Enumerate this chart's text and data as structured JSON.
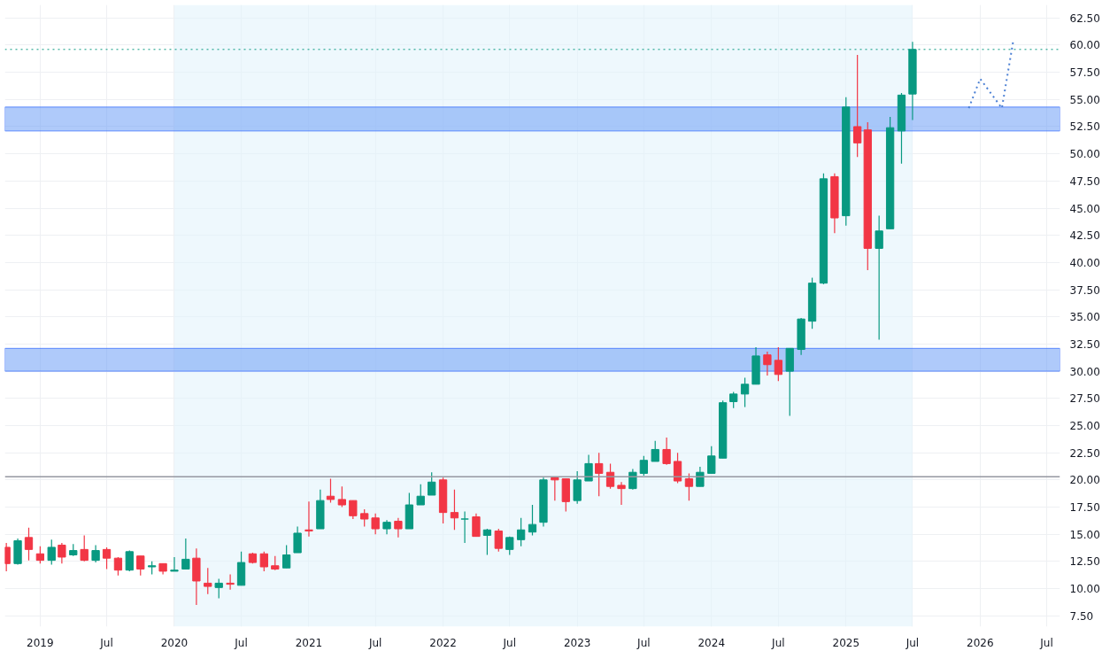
{
  "chart_data": {
    "type": "candlestick",
    "x": [
      "2018-10",
      "2018-11",
      "2018-12",
      "2019-01",
      "2019-02",
      "2019-03",
      "2019-04",
      "2019-05",
      "2019-06",
      "2019-07",
      "2019-08",
      "2019-09",
      "2019-10",
      "2019-11",
      "2019-12",
      "2020-01",
      "2020-02",
      "2020-03",
      "2020-04",
      "2020-05",
      "2020-06",
      "2020-07",
      "2020-08",
      "2020-09",
      "2020-10",
      "2020-11",
      "2020-12",
      "2021-01",
      "2021-02",
      "2021-03",
      "2021-04",
      "2021-05",
      "2021-06",
      "2021-07",
      "2021-08",
      "2021-09",
      "2021-10",
      "2021-11",
      "2021-12",
      "2022-01",
      "2022-02",
      "2022-03",
      "2022-04",
      "2022-05",
      "2022-06",
      "2022-07",
      "2022-08",
      "2022-09",
      "2022-10",
      "2022-11",
      "2022-12",
      "2023-01",
      "2023-02",
      "2023-03",
      "2023-04",
      "2023-05",
      "2023-06",
      "2023-07",
      "2023-08",
      "2023-09",
      "2023-10",
      "2023-11",
      "2023-12",
      "2024-01",
      "2024-02",
      "2024-03",
      "2024-04",
      "2024-05",
      "2024-06",
      "2024-07",
      "2024-08",
      "2024-09",
      "2024-10",
      "2024-11",
      "2024-12",
      "2025-01",
      "2025-02",
      "2025-03",
      "2025-04",
      "2025-05",
      "2025-06",
      "2025-07"
    ],
    "ohlc": [
      [
        13.8,
        14.2,
        11.6,
        12.3
      ],
      [
        12.3,
        14.6,
        12.2,
        14.4
      ],
      [
        14.7,
        15.6,
        12.6,
        13.6
      ],
      [
        13.2,
        13.9,
        12.3,
        12.6
      ],
      [
        12.6,
        14.5,
        12.2,
        13.8
      ],
      [
        14.0,
        14.2,
        12.3,
        12.9
      ],
      [
        13.1,
        14.1,
        13.0,
        13.5
      ],
      [
        13.6,
        14.9,
        12.5,
        12.6
      ],
      [
        12.6,
        14.0,
        12.4,
        13.5
      ],
      [
        13.6,
        13.8,
        11.8,
        12.8
      ],
      [
        12.8,
        12.9,
        11.2,
        11.7
      ],
      [
        11.7,
        13.5,
        11.6,
        13.4
      ],
      [
        13.0,
        13.0,
        11.2,
        11.8
      ],
      [
        12.0,
        12.5,
        11.3,
        12.1
      ],
      [
        12.3,
        12.3,
        11.3,
        11.6
      ],
      [
        11.6,
        12.9,
        11.6,
        11.7
      ],
      [
        11.8,
        14.6,
        11.8,
        12.7
      ],
      [
        12.8,
        13.7,
        8.5,
        10.7
      ],
      [
        10.5,
        11.9,
        9.5,
        10.2
      ],
      [
        10.1,
        10.9,
        9.1,
        10.5
      ],
      [
        10.5,
        11.3,
        9.9,
        10.4
      ],
      [
        10.3,
        13.4,
        10.3,
        12.4
      ],
      [
        13.2,
        13.3,
        12.3,
        12.4
      ],
      [
        13.2,
        13.4,
        11.6,
        12.0
      ],
      [
        12.1,
        13.0,
        11.7,
        11.8
      ],
      [
        11.9,
        14.0,
        11.9,
        13.1
      ],
      [
        13.3,
        15.7,
        13.3,
        15.1
      ],
      [
        15.4,
        18.0,
        14.8,
        15.3
      ],
      [
        15.5,
        19.1,
        15.5,
        18.1
      ],
      [
        18.5,
        20.1,
        17.9,
        18.2
      ],
      [
        18.2,
        19.4,
        17.5,
        17.7
      ],
      [
        18.1,
        18.1,
        16.4,
        16.7
      ],
      [
        16.9,
        17.3,
        15.7,
        16.4
      ],
      [
        16.5,
        16.9,
        15.0,
        15.5
      ],
      [
        15.5,
        16.3,
        15.0,
        16.1
      ],
      [
        16.2,
        16.5,
        14.7,
        15.5
      ],
      [
        15.5,
        18.8,
        15.5,
        17.7
      ],
      [
        17.7,
        19.6,
        17.7,
        18.5
      ],
      [
        18.6,
        20.7,
        18.6,
        19.8
      ],
      [
        20.0,
        20.2,
        16.0,
        17.0
      ],
      [
        17.0,
        19.1,
        15.4,
        16.5
      ],
      [
        16.4,
        17.1,
        14.2,
        16.4
      ],
      [
        16.6,
        16.9,
        14.8,
        14.8
      ],
      [
        14.9,
        15.5,
        13.1,
        15.4
      ],
      [
        15.3,
        15.5,
        13.4,
        13.7
      ],
      [
        13.6,
        14.8,
        13.1,
        14.7
      ],
      [
        14.5,
        16.5,
        13.9,
        15.4
      ],
      [
        15.2,
        17.7,
        14.9,
        15.9
      ],
      [
        16.1,
        20.2,
        15.7,
        20.0
      ],
      [
        20.2,
        20.3,
        18.1,
        20.0
      ],
      [
        20.1,
        20.1,
        17.1,
        18.0
      ],
      [
        18.1,
        20.8,
        17.8,
        20.0
      ],
      [
        19.9,
        22.3,
        19.9,
        21.5
      ],
      [
        21.5,
        22.5,
        18.5,
        20.6
      ],
      [
        20.7,
        21.5,
        19.2,
        19.4
      ],
      [
        19.5,
        19.8,
        17.7,
        19.2
      ],
      [
        19.2,
        21.0,
        19.1,
        20.7
      ],
      [
        20.6,
        22.2,
        20.4,
        21.8
      ],
      [
        21.7,
        23.6,
        21.7,
        22.8
      ],
      [
        22.8,
        23.9,
        21.4,
        21.5
      ],
      [
        21.7,
        22.5,
        19.7,
        19.9
      ],
      [
        20.1,
        20.6,
        18.1,
        19.4
      ],
      [
        19.4,
        21.2,
        19.4,
        20.7
      ],
      [
        20.6,
        23.1,
        20.6,
        22.2
      ],
      [
        22.0,
        27.3,
        22.0,
        27.1
      ],
      [
        27.2,
        28.1,
        26.6,
        27.9
      ],
      [
        27.9,
        29.4,
        26.7,
        28.8
      ],
      [
        28.8,
        32.2,
        28.8,
        31.4
      ],
      [
        31.5,
        31.8,
        29.6,
        30.6
      ],
      [
        31.0,
        32.2,
        29.1,
        29.7
      ],
      [
        30.0,
        32.1,
        25.9,
        32.1
      ],
      [
        32.0,
        34.9,
        31.5,
        34.8
      ],
      [
        34.6,
        38.6,
        33.9,
        38.1
      ],
      [
        38.1,
        48.2,
        38.0,
        47.7
      ],
      [
        47.9,
        48.2,
        42.7,
        44.1
      ],
      [
        44.3,
        55.2,
        43.4,
        54.3
      ],
      [
        52.5,
        59.1,
        49.7,
        51.0
      ],
      [
        52.2,
        52.9,
        39.3,
        41.3
      ],
      [
        41.3,
        44.3,
        32.9,
        42.9
      ],
      [
        43.1,
        53.4,
        43.1,
        52.4
      ],
      [
        52.1,
        55.6,
        49.1,
        55.4
      ],
      [
        55.5,
        60.3,
        53.1,
        59.6
      ]
    ],
    "colors": [
      "#f23645",
      "#089981",
      "#f23645",
      "#f23645",
      "#089981",
      "#f23645",
      "#089981",
      "#f23645",
      "#089981",
      "#f23645",
      "#f23645",
      "#089981",
      "#f23645",
      "#089981",
      "#f23645",
      "#089981",
      "#089981",
      "#f23645",
      "#f23645",
      "#089981",
      "#f23645",
      "#089981",
      "#f23645",
      "#f23645",
      "#f23645",
      "#089981",
      "#089981",
      "#f23645",
      "#089981",
      "#f23645",
      "#f23645",
      "#f23645",
      "#f23645",
      "#f23645",
      "#089981",
      "#f23645",
      "#089981",
      "#089981",
      "#089981",
      "#f23645",
      "#f23645",
      "#089981",
      "#f23645",
      "#089981",
      "#f23645",
      "#089981",
      "#089981",
      "#089981",
      "#089981",
      "#f23645",
      "#f23645",
      "#089981",
      "#089981",
      "#f23645",
      "#f23645",
      "#f23645",
      "#089981",
      "#089981",
      "#089981",
      "#f23645",
      "#f23645",
      "#f23645",
      "#089981",
      "#089981",
      "#089981",
      "#089981",
      "#089981",
      "#089981",
      "#f23645",
      "#f23645",
      "#089981",
      "#089981",
      "#089981",
      "#089981",
      "#f23645",
      "#089981",
      "#f23645",
      "#f23645",
      "#089981",
      "#089981",
      "#089981",
      "#089981"
    ],
    "series": [
      {
        "type": "line",
        "color": "#4a7fd4",
        "line_style": "dotted",
        "x": [
          "2025-12",
          "2026-01",
          "2026-03",
          "2026-04"
        ],
        "values": [
          54.2,
          56.9,
          54.2,
          60.4
        ]
      }
    ],
    "ref_lines": [
      {
        "axis": "y",
        "value": 20.3,
        "color": "#9598a1",
        "line_style": "solid"
      },
      {
        "axis": "y",
        "value": 59.6,
        "color": "#089981",
        "line_style": "dotted"
      }
    ],
    "bands": [
      {
        "axis": "x",
        "from": "2020-01",
        "to": "2025-07",
        "color": "#e3f4fb"
      },
      {
        "axis": "y",
        "from": 30.0,
        "to": 32.1,
        "color": "#6d9ef5"
      },
      {
        "axis": "y",
        "from": 52.1,
        "to": 54.3,
        "color": "#6d9ef5"
      }
    ],
    "xlim": [
      "2018-09-27",
      "2026-08-06"
    ],
    "xticks": [
      {
        "value": "2019-01",
        "label": "2019"
      },
      {
        "value": "2019-07",
        "label": "Jul"
      },
      {
        "value": "2020-01",
        "label": "2020"
      },
      {
        "value": "2020-07",
        "label": "Jul"
      },
      {
        "value": "2021-01",
        "label": "2021"
      },
      {
        "value": "2021-07",
        "label": "Jul"
      },
      {
        "value": "2022-01",
        "label": "2022"
      },
      {
        "value": "2022-07",
        "label": "Jul"
      },
      {
        "value": "2023-01",
        "label": "2023"
      },
      {
        "value": "2023-07",
        "label": "Jul"
      },
      {
        "value": "2024-01",
        "label": "2024"
      },
      {
        "value": "2024-07",
        "label": "Jul"
      },
      {
        "value": "2025-01",
        "label": "2025"
      },
      {
        "value": "2025-07",
        "label": "Jul"
      },
      {
        "value": "2026-01",
        "label": "2026"
      },
      {
        "value": "2026-07",
        "label": "Jul"
      }
    ],
    "ylim": [
      6.5,
      63.7
    ],
    "yticks": [
      {
        "value": 7.5,
        "label": "7.50"
      },
      {
        "value": 10,
        "label": "10.00"
      },
      {
        "value": 12.5,
        "label": "12.50"
      },
      {
        "value": 15,
        "label": "15.00"
      },
      {
        "value": 17.5,
        "label": "17.50"
      },
      {
        "value": 20,
        "label": "20.00"
      },
      {
        "value": 22.5,
        "label": "22.50"
      },
      {
        "value": 25,
        "label": "25.00"
      },
      {
        "value": 27.5,
        "label": "27.50"
      },
      {
        "value": 30,
        "label": "30.00"
      },
      {
        "value": 32.5,
        "label": "32.50"
      },
      {
        "value": 35,
        "label": "35.00"
      },
      {
        "value": 37.5,
        "label": "37.50"
      },
      {
        "value": 40,
        "label": "40.00"
      },
      {
        "value": 42.5,
        "label": "42.50"
      },
      {
        "value": 45,
        "label": "45.00"
      },
      {
        "value": 47.5,
        "label": "47.50"
      },
      {
        "value": 50,
        "label": "50.00"
      },
      {
        "value": 52.5,
        "label": "52.50"
      },
      {
        "value": 55,
        "label": "55.00"
      },
      {
        "value": 57.5,
        "label": "57.50"
      },
      {
        "value": 60,
        "label": "60.00"
      },
      {
        "value": 62.5,
        "label": "62.50"
      }
    ],
    "grid": true
  }
}
